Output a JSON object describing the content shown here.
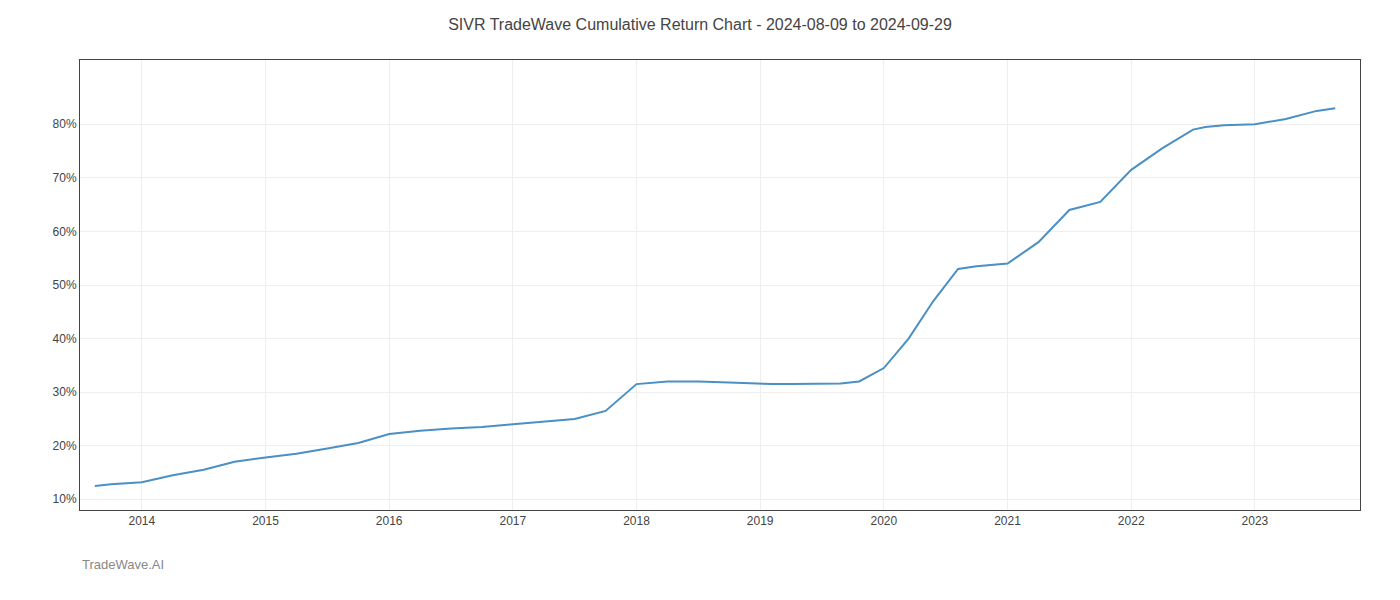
{
  "chart_data": {
    "type": "line",
    "title": "SIVR TradeWave Cumulative Return Chart - 2024-08-09 to 2024-09-29",
    "annotations": [
      "TradeWave.AI"
    ],
    "x": [
      2013.62,
      2013.75,
      2014.0,
      2014.25,
      2014.5,
      2014.75,
      2015.0,
      2015.25,
      2015.5,
      2015.75,
      2016.0,
      2016.25,
      2016.5,
      2016.75,
      2017.0,
      2017.25,
      2017.5,
      2017.75,
      2018.0,
      2018.25,
      2018.5,
      2018.75,
      2019.0,
      2019.1,
      2019.25,
      2019.5,
      2019.6,
      2019.65,
      2019.8,
      2020.0,
      2020.2,
      2020.4,
      2020.6,
      2020.75,
      2021.0,
      2021.25,
      2021.5,
      2021.75,
      2022.0,
      2022.25,
      2022.5,
      2022.6,
      2022.75,
      2023.0,
      2023.25,
      2023.5,
      2023.65
    ],
    "values": [
      12.5,
      12.8,
      13.2,
      14.5,
      15.5,
      17.0,
      17.8,
      18.5,
      19.5,
      20.5,
      22.2,
      22.8,
      23.2,
      23.5,
      24.0,
      24.5,
      25.0,
      26.5,
      31.5,
      32.0,
      32.0,
      31.8,
      31.5,
      31.5,
      31.5,
      31.5,
      31.5,
      31.6,
      32.0,
      34.5,
      40.0,
      47.0,
      53.0,
      53.5,
      54.0,
      58.0,
      64.0,
      65.5,
      71.5,
      75.5,
      79.0,
      79.5,
      79.8,
      80.0,
      81.0,
      82.5,
      83.0
    ],
    "color": "#4a90c4",
    "xlim": [
      2013.5,
      2023.85
    ],
    "ylim": [
      8,
      92
    ],
    "xticks": [
      2014,
      2015,
      2016,
      2017,
      2018,
      2019,
      2020,
      2021,
      2022,
      2023
    ],
    "yticks": [
      {
        "value": 10,
        "label": "10%"
      },
      {
        "value": 20,
        "label": "20%"
      },
      {
        "value": 30,
        "label": "30%"
      },
      {
        "value": 40,
        "label": "40%"
      },
      {
        "value": 50,
        "label": "50%"
      },
      {
        "value": 60,
        "label": "60%"
      },
      {
        "value": 70,
        "label": "70%"
      },
      {
        "value": 80,
        "label": "80%"
      }
    ],
    "grid": true
  }
}
